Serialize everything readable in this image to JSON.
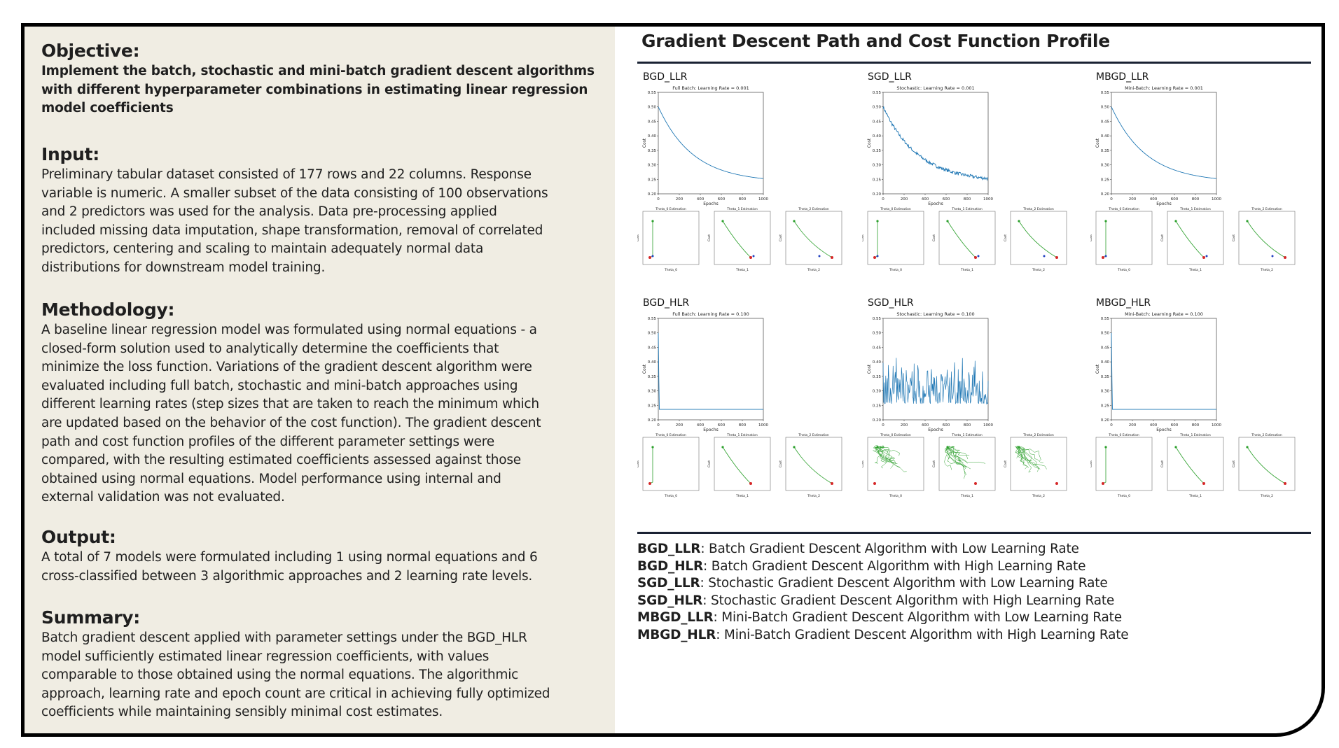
{
  "left": {
    "objective_title": "Objective:",
    "objective_lines": [
      "Implement the batch, stochastic and mini-batch gradient descent algorithms",
      "with different hyperparameter combinations in estimating linear regression",
      "model coefficients"
    ],
    "input_title": "Input:",
    "input_lines": [
      "Preliminary tabular dataset consisted of 177 rows and 22 columns. Response",
      "variable is numeric. A smaller subset of the data consisting of 100 observations",
      "and 2 predictors was used for the analysis. Data pre-processing applied",
      "included missing data imputation, shape transformation, removal of correlated",
      "predictors, centering and scaling to maintain adequately normal data",
      "distributions for downstream model training."
    ],
    "methodology_title": "Methodology:",
    "methodology_lines": [
      "A baseline linear regression model was formulated using normal equations - a",
      "closed-form solution used to analytically determine the coefficients that",
      "minimize the loss function. Variations of the gradient descent algorithm were",
      "evaluated including full batch, stochastic and mini-batch approaches using",
      "different learning rates (step sizes that are taken to reach the minimum which",
      "are updated based on the behavior of the cost function). The gradient descent",
      "path and cost function profiles of the different parameter settings were",
      "compared, with the resulting estimated coefficients assessed against those",
      "obtained using normal equations. Model performance using internal and",
      "external validation was not evaluated."
    ],
    "output_title": "Output:",
    "output_lines": [
      "A total of 7 models were formulated including 1 using normal equations and 6",
      "cross-classified between 3 algorithmic approaches and 2 learning rate levels."
    ],
    "summary_title": "Summary:",
    "summary_lines": [
      "Batch gradient descent applied with parameter settings under the BGD_HLR",
      "model sufficiently estimated linear regression coefficients, with values",
      "comparable to those obtained using the normal equations. The algorithmic",
      "approach, learning rate and epoch count are critical in achieving fully optimized",
      "coefficients while maintaining sensibly minimal cost estimates."
    ]
  },
  "right": {
    "title": "Gradient Descent Path and Cost Function Profile",
    "panels": [
      {
        "label": "BGD_LLR",
        "cost_title": "Full Batch: Learning Rate = 0.001",
        "profile": "smooth_decay"
      },
      {
        "label": "SGD_LLR",
        "cost_title": "Stochastic: Learning Rate = 0.001",
        "profile": "noisy_decay"
      },
      {
        "label": "MBGD_LLR",
        "cost_title": "Mini-Batch: Learning Rate = 0.001",
        "profile": "smooth_decay"
      },
      {
        "label": "BGD_HLR",
        "cost_title": "Full Batch: Learning Rate = 0.100",
        "profile": "flat"
      },
      {
        "label": "SGD_HLR",
        "cost_title": "Stochastic: Learning Rate = 0.100",
        "profile": "spiky"
      },
      {
        "label": "MBGD_HLR",
        "cost_title": "Mini-Batch: Learning Rate = 0.100",
        "profile": "flat"
      }
    ],
    "cost_axes": {
      "xlabel": "Epochs",
      "ylabel": "Cost",
      "x_ticks": [
        "0",
        "200",
        "400",
        "600",
        "800",
        "1000"
      ],
      "y_ticks": [
        "0.20",
        "0.25",
        "0.30",
        "0.35",
        "0.40",
        "0.45",
        "0.50",
        "0.55"
      ]
    },
    "path_titles": [
      "Theta_0 Estimation",
      "Theta_1 Estimation",
      "Theta_2 Estimation"
    ],
    "path_xlabels": [
      "Theta_0",
      "Theta_1",
      "Theta_2"
    ],
    "colors": {
      "cost_line": "#1f77b4",
      "path_line": "#2ca02c",
      "start_marker": "#2ca02c",
      "end_marker": "#d62728",
      "ne_marker": "#1f3fbf"
    },
    "legend": [
      {
        "key": "BGD_LLR",
        "desc": ": Batch Gradient Descent Algorithm with Low Learning Rate"
      },
      {
        "key": "BGD_HLR",
        "desc": ": Batch Gradient Descent Algorithm with High Learning Rate"
      },
      {
        "key": "SGD_LLR",
        "desc": ": Stochastic Gradient Descent Algorithm with Low Learning Rate"
      },
      {
        "key": "SGD_HLR",
        "desc": ": Stochastic Gradient Descent Algorithm with High Learning Rate"
      },
      {
        "key": "MBGD_LLR",
        "desc": ": Mini-Batch Gradient Descent Algorithm with Low Learning Rate"
      },
      {
        "key": "MBGD_HLR",
        "desc": ": Mini-Batch Gradient Descent Algorithm with High Learning Rate"
      }
    ]
  }
}
